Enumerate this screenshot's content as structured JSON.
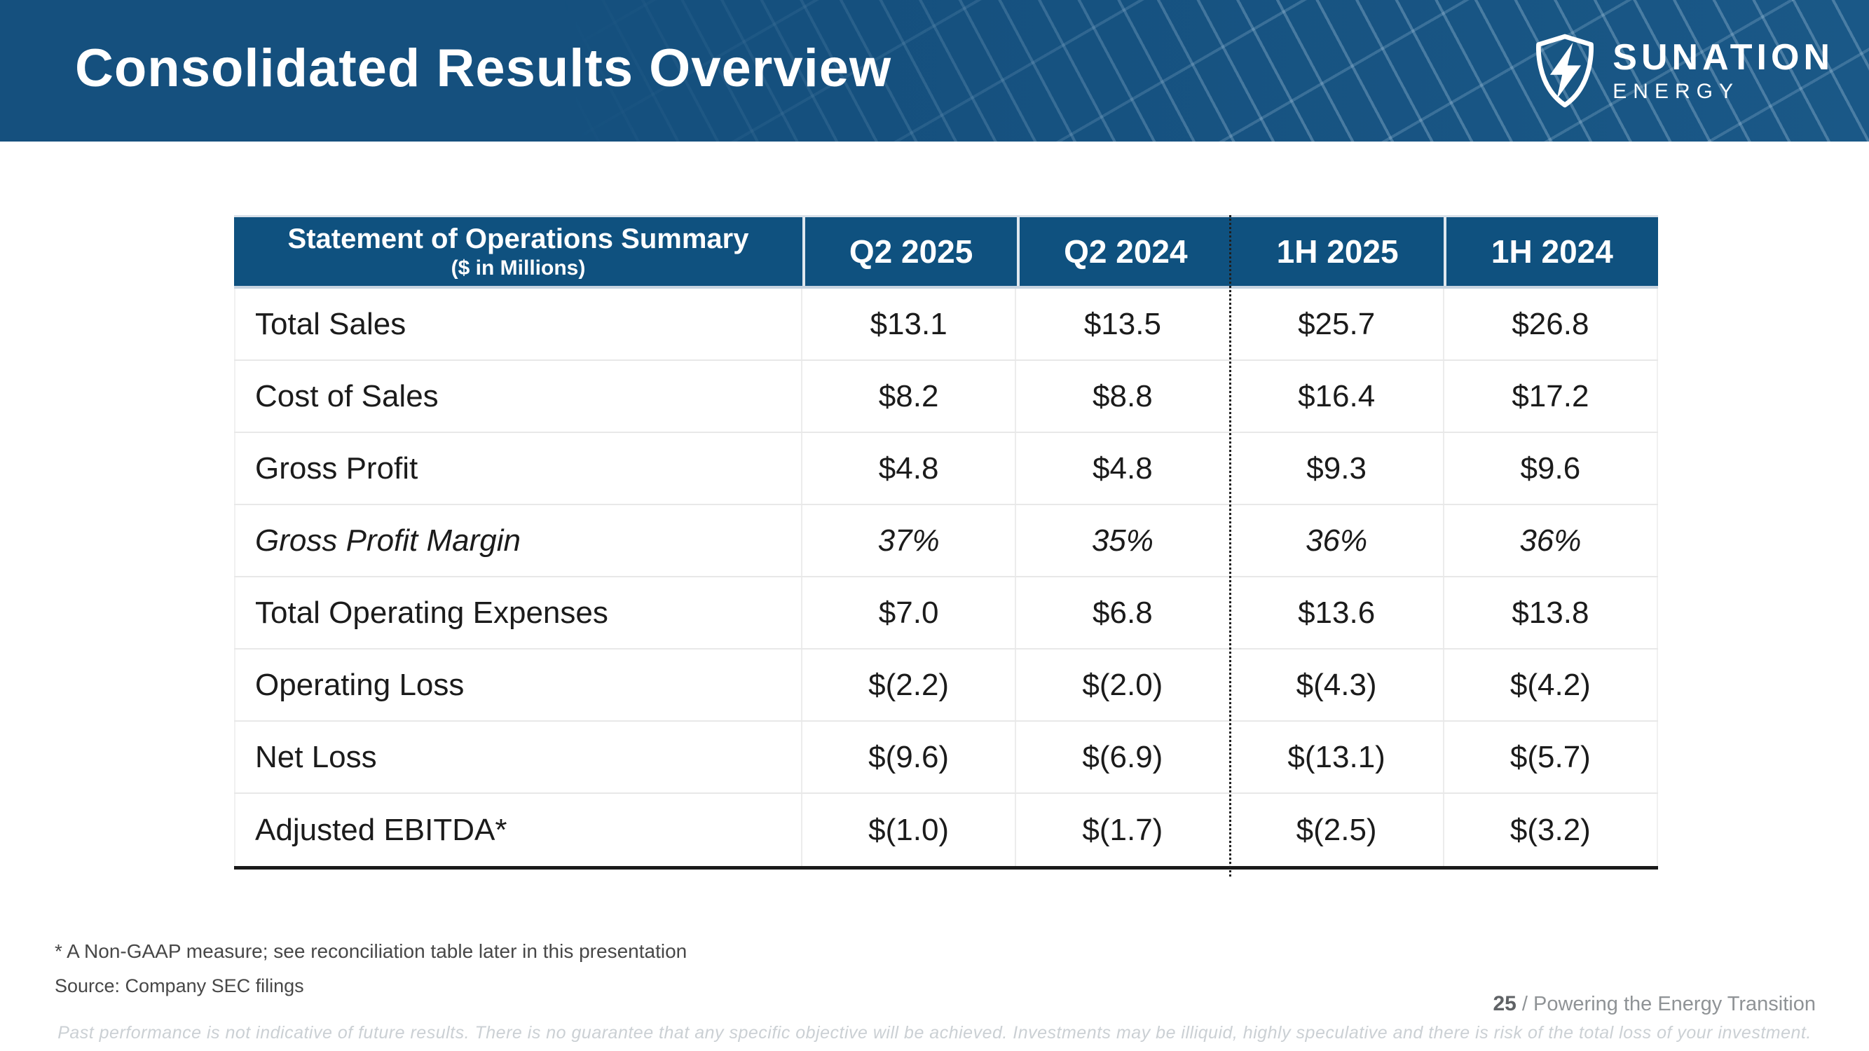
{
  "colors": {
    "banner_blue": "#15507E",
    "banner_blue_light": "#1A5887",
    "table_header_blue": "#0F517F"
  },
  "header": {
    "title": "Consolidated Results Overview",
    "logo": {
      "name": "SUNATION",
      "subtitle": "ENERGY"
    }
  },
  "table": {
    "header": {
      "title": "Statement of Operations Summary",
      "subtitle": "($ in Millions)",
      "columns": [
        "Q2 2025",
        "Q2 2024",
        "1H 2025",
        "1H 2024"
      ]
    },
    "rows": [
      {
        "label": "Total Sales",
        "values": [
          "$13.1",
          "$13.5",
          "$25.7",
          "$26.8"
        ],
        "italic": false
      },
      {
        "label": "Cost of Sales",
        "values": [
          "$8.2",
          "$8.8",
          "$16.4",
          "$17.2"
        ],
        "italic": false
      },
      {
        "label": "Gross Profit",
        "values": [
          "$4.8",
          "$4.8",
          "$9.3",
          "$9.6"
        ],
        "italic": false
      },
      {
        "label": "Gross Profit Margin",
        "values": [
          "37%",
          "35%",
          "36%",
          "36%"
        ],
        "italic": true
      },
      {
        "label": "Total Operating Expenses",
        "values": [
          "$7.0",
          "$6.8",
          "$13.6",
          "$13.8"
        ],
        "italic": false
      },
      {
        "label": "Operating Loss",
        "values": [
          "$(2.2)",
          "$(2.0)",
          "$(4.3)",
          "$(4.2)"
        ],
        "italic": false
      },
      {
        "label": "Net Loss",
        "values": [
          "$(9.6)",
          "$(6.9)",
          "$(13.1)",
          "$(5.7)"
        ],
        "italic": false
      },
      {
        "label": "Adjusted EBITDA*",
        "values": [
          "$(1.0)",
          "$(1.7)",
          "$(2.5)",
          "$(3.2)"
        ],
        "italic": false
      }
    ]
  },
  "footnotes": {
    "note": "* A Non-GAAP measure; see reconciliation table later in this presentation",
    "source": "Source:  Company SEC filings"
  },
  "footer": {
    "page_number": "25",
    "separator": " / ",
    "tagline": "Powering the Energy Transition"
  },
  "disclaimer": "Past performance is not indicative of future results. There is no guarantee that any specific objective will be achieved. Investments may be illiquid, highly speculative and there is risk of the total loss of your investment."
}
